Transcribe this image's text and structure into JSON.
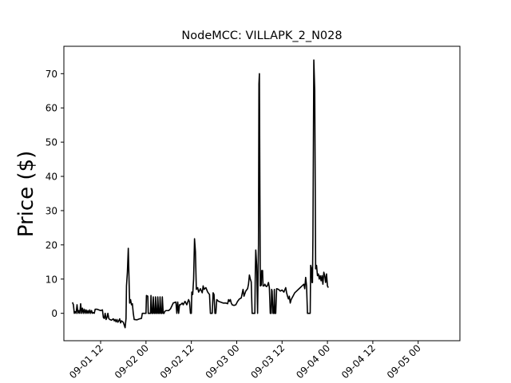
{
  "chart_data": {
    "type": "line",
    "title": "NodeMCC: VILLAPK_2_N028",
    "xlabel": "",
    "ylabel": "Price ($)",
    "ylim": [
      -8,
      78
    ],
    "y_ticks": [
      0,
      10,
      20,
      30,
      40,
      50,
      60,
      70
    ],
    "x_ticks": [
      {
        "t": 1.5,
        "label": "09-01 12"
      },
      {
        "t": 2.0,
        "label": "09-02 00"
      },
      {
        "t": 2.5,
        "label": "09-02 12"
      },
      {
        "t": 3.0,
        "label": "09-03 00"
      },
      {
        "t": 3.5,
        "label": "09-03 12"
      },
      {
        "t": 4.0,
        "label": "09-04 00"
      },
      {
        "t": 4.5,
        "label": "09-04 12"
      },
      {
        "t": 5.0,
        "label": "09-05 00"
      }
    ],
    "xlim": [
      1.095,
      5.46
    ],
    "grid": false,
    "line_color": "#000000",
    "series": [
      {
        "points": [
          [
            1.19,
            3.2
          ],
          [
            1.2,
            2.5
          ],
          [
            1.21,
            0
          ],
          [
            1.22,
            0.5
          ],
          [
            1.23,
            0
          ],
          [
            1.24,
            2.5
          ],
          [
            1.25,
            0
          ],
          [
            1.26,
            0.8
          ],
          [
            1.27,
            0
          ],
          [
            1.28,
            2.8
          ],
          [
            1.29,
            0
          ],
          [
            1.3,
            1.5
          ],
          [
            1.31,
            0
          ],
          [
            1.32,
            1.2
          ],
          [
            1.33,
            0
          ],
          [
            1.34,
            1
          ],
          [
            1.35,
            0
          ],
          [
            1.36,
            0.8
          ],
          [
            1.37,
            0
          ],
          [
            1.38,
            1
          ],
          [
            1.39,
            0
          ],
          [
            1.4,
            0.8
          ],
          [
            1.41,
            0
          ],
          [
            1.42,
            0.2
          ],
          [
            1.43,
            0
          ],
          [
            1.44,
            1.2
          ],
          [
            1.46,
            1.2
          ],
          [
            1.48,
            1
          ],
          [
            1.5,
            0.8
          ],
          [
            1.52,
            1
          ],
          [
            1.53,
            -1.2
          ],
          [
            1.54,
            -1.5
          ],
          [
            1.55,
            0
          ],
          [
            1.56,
            -1.8
          ],
          [
            1.57,
            -1.2
          ],
          [
            1.58,
            0
          ],
          [
            1.59,
            -1.5
          ],
          [
            1.6,
            -1.8
          ],
          [
            1.62,
            -2
          ],
          [
            1.64,
            -1.6
          ],
          [
            1.65,
            -2.2
          ],
          [
            1.66,
            -1.8
          ],
          [
            1.67,
            -2.5
          ],
          [
            1.68,
            -1.8
          ],
          [
            1.69,
            -2.6
          ],
          [
            1.7,
            -2.2
          ],
          [
            1.71,
            -1.6
          ],
          [
            1.72,
            -2.8
          ],
          [
            1.73,
            -2.2
          ],
          [
            1.75,
            -2.6
          ],
          [
            1.76,
            -3.4
          ],
          [
            1.77,
            -4.2
          ],
          [
            1.78,
            -1.5
          ],
          [
            1.785,
            8
          ],
          [
            1.795,
            12
          ],
          [
            1.805,
            19
          ],
          [
            1.815,
            8
          ],
          [
            1.82,
            3
          ],
          [
            1.83,
            4
          ],
          [
            1.84,
            2.5
          ],
          [
            1.85,
            2.8
          ],
          [
            1.86,
            0
          ],
          [
            1.87,
            -1.8
          ],
          [
            1.9,
            -1.9
          ],
          [
            1.93,
            -1.6
          ],
          [
            1.95,
            -1.5
          ],
          [
            1.96,
            0
          ],
          [
            1.98,
            0
          ],
          [
            2.0,
            0
          ],
          [
            2.005,
            5.2
          ],
          [
            2.02,
            5
          ],
          [
            2.025,
            0
          ],
          [
            2.05,
            0
          ],
          [
            2.055,
            5.2
          ],
          [
            2.065,
            0
          ],
          [
            2.075,
            0
          ],
          [
            2.08,
            4.8
          ],
          [
            2.09,
            0
          ],
          [
            2.1,
            0
          ],
          [
            2.105,
            4.8
          ],
          [
            2.115,
            0
          ],
          [
            2.125,
            0
          ],
          [
            2.13,
            4.8
          ],
          [
            2.14,
            0
          ],
          [
            2.15,
            0
          ],
          [
            2.155,
            4.8
          ],
          [
            2.165,
            0
          ],
          [
            2.175,
            0
          ],
          [
            2.18,
            4.8
          ],
          [
            2.19,
            0
          ],
          [
            2.2,
            0
          ],
          [
            2.205,
            0.5
          ],
          [
            2.22,
            0.8
          ],
          [
            2.25,
            0.8
          ],
          [
            2.27,
            1.3
          ],
          [
            2.3,
            3
          ],
          [
            2.33,
            3.3
          ],
          [
            2.34,
            0
          ],
          [
            2.35,
            3.3
          ],
          [
            2.36,
            0
          ],
          [
            2.37,
            2.5
          ],
          [
            2.38,
            2.5
          ],
          [
            2.4,
            3
          ],
          [
            2.41,
            2.5
          ],
          [
            2.43,
            3.5
          ],
          [
            2.45,
            2.5
          ],
          [
            2.46,
            3.3
          ],
          [
            2.47,
            4
          ],
          [
            2.48,
            3.3
          ],
          [
            2.49,
            0
          ],
          [
            2.5,
            0
          ],
          [
            2.505,
            6.2
          ],
          [
            2.515,
            5.5
          ],
          [
            2.525,
            10
          ],
          [
            2.535,
            21.8
          ],
          [
            2.545,
            18
          ],
          [
            2.555,
            7
          ],
          [
            2.57,
            7.5
          ],
          [
            2.58,
            6.2
          ],
          [
            2.6,
            7.2
          ],
          [
            2.62,
            6
          ],
          [
            2.63,
            8
          ],
          [
            2.64,
            7
          ],
          [
            2.66,
            7.5
          ],
          [
            2.68,
            6.2
          ],
          [
            2.7,
            5.5
          ],
          [
            2.71,
            0
          ],
          [
            2.73,
            0
          ],
          [
            2.74,
            6
          ],
          [
            2.75,
            5.5
          ],
          [
            2.76,
            0
          ],
          [
            2.77,
            0
          ],
          [
            2.78,
            4
          ],
          [
            2.8,
            3.5
          ],
          [
            2.82,
            3.3
          ],
          [
            2.85,
            3
          ],
          [
            2.88,
            3
          ],
          [
            2.9,
            2.8
          ],
          [
            2.91,
            4
          ],
          [
            2.92,
            3.5
          ],
          [
            2.93,
            4
          ],
          [
            2.94,
            3
          ],
          [
            2.95,
            2.5
          ],
          [
            2.97,
            2.3
          ],
          [
            2.99,
            2.5
          ],
          [
            3.01,
            3.5
          ],
          [
            3.03,
            4.2
          ],
          [
            3.05,
            4.5
          ],
          [
            3.07,
            7
          ],
          [
            3.08,
            5
          ],
          [
            3.1,
            6.5
          ],
          [
            3.12,
            7.2
          ],
          [
            3.13,
            8.5
          ],
          [
            3.14,
            11.2
          ],
          [
            3.15,
            10
          ],
          [
            3.16,
            9.2
          ],
          [
            3.17,
            0
          ],
          [
            3.19,
            0
          ],
          [
            3.2,
            0
          ],
          [
            3.205,
            12
          ],
          [
            3.21,
            18.5
          ],
          [
            3.22,
            14
          ],
          [
            3.23,
            0
          ],
          [
            3.24,
            20
          ],
          [
            3.245,
            67
          ],
          [
            3.25,
            70
          ],
          [
            3.26,
            8
          ],
          [
            3.27,
            8.2
          ],
          [
            3.275,
            12.5
          ],
          [
            3.285,
            12.5
          ],
          [
            3.29,
            8
          ],
          [
            3.3,
            8
          ],
          [
            3.31,
            8.5
          ],
          [
            3.32,
            8
          ],
          [
            3.33,
            7.8
          ],
          [
            3.34,
            8.2
          ],
          [
            3.35,
            9
          ],
          [
            3.36,
            7.5
          ],
          [
            3.37,
            0
          ],
          [
            3.38,
            0
          ],
          [
            3.385,
            7
          ],
          [
            3.39,
            6.5
          ],
          [
            3.4,
            0
          ],
          [
            3.41,
            0
          ],
          [
            3.415,
            7
          ],
          [
            3.42,
            0
          ],
          [
            3.43,
            0
          ],
          [
            3.44,
            7.2
          ],
          [
            3.46,
            7
          ],
          [
            3.48,
            6.5
          ],
          [
            3.5,
            6.8
          ],
          [
            3.52,
            6.2
          ],
          [
            3.54,
            7.5
          ],
          [
            3.55,
            6
          ],
          [
            3.56,
            5
          ],
          [
            3.57,
            4.2
          ],
          [
            3.58,
            5
          ],
          [
            3.59,
            3
          ],
          [
            3.6,
            4
          ],
          [
            3.62,
            5
          ],
          [
            3.64,
            6
          ],
          [
            3.66,
            6.5
          ],
          [
            3.68,
            7
          ],
          [
            3.7,
            7.5
          ],
          [
            3.72,
            8
          ],
          [
            3.74,
            8.5
          ],
          [
            3.75,
            7.2
          ],
          [
            3.76,
            10.5
          ],
          [
            3.77,
            8
          ],
          [
            3.78,
            0
          ],
          [
            3.8,
            0
          ],
          [
            3.81,
            0
          ],
          [
            3.815,
            14
          ],
          [
            3.825,
            13
          ],
          [
            3.83,
            9
          ],
          [
            3.835,
            9
          ],
          [
            3.84,
            22
          ],
          [
            3.85,
            74
          ],
          [
            3.86,
            65
          ],
          [
            3.87,
            13
          ],
          [
            3.88,
            14
          ],
          [
            3.89,
            11
          ],
          [
            3.9,
            11.5
          ],
          [
            3.91,
            10
          ],
          [
            3.92,
            11
          ],
          [
            3.93,
            9.5
          ],
          [
            3.94,
            11
          ],
          [
            3.95,
            8.5
          ],
          [
            3.96,
            12
          ],
          [
            3.97,
            11
          ],
          [
            3.98,
            9
          ],
          [
            3.99,
            11.5
          ],
          [
            4.0,
            8
          ],
          [
            4.01,
            7.5
          ]
        ]
      }
    ]
  }
}
